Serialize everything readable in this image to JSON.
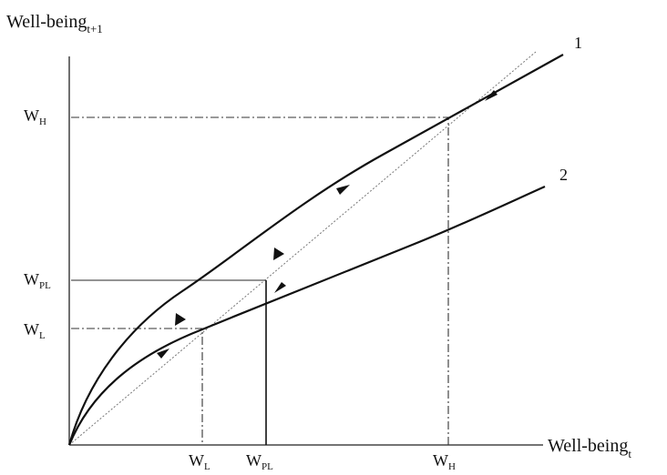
{
  "axes": {
    "y_title": "Well-being",
    "y_sub": "t+1",
    "x_title": "Well-being",
    "x_sub": "t"
  },
  "curves": {
    "curve1_label": "1",
    "curve2_label": "2"
  },
  "y_labels": {
    "wh_main": "W",
    "wh_sub": "H",
    "wpl_main": "W",
    "wpl_sub": "PL",
    "wl_main": "W",
    "wl_sub": "L"
  },
  "x_labels": {
    "wl_main": "W",
    "wl_sub": "L",
    "wpl_main": "W",
    "wpl_sub": "PL",
    "wh_main": "W",
    "wh_sub": "H"
  }
}
